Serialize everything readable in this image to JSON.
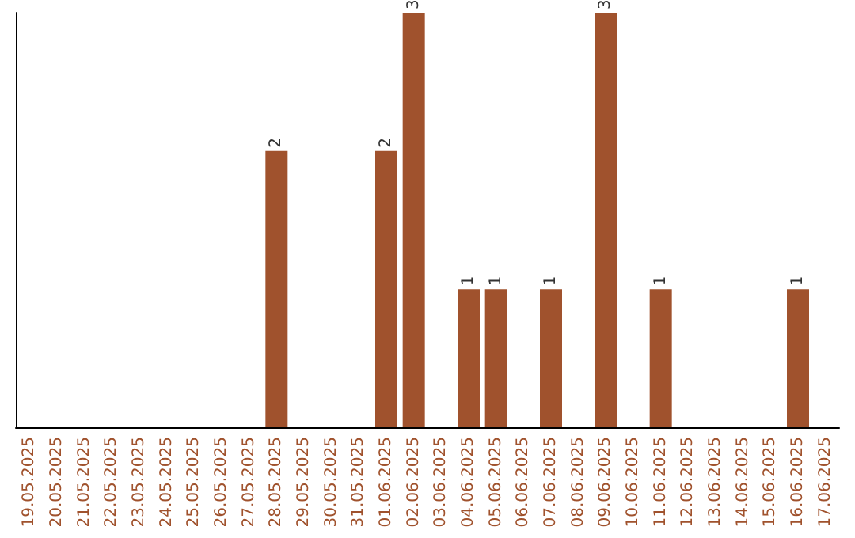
{
  "chart_data": {
    "type": "bar",
    "categories": [
      "19.05.2025",
      "20.05.2025",
      "21.05.2025",
      "22.05.2025",
      "23.05.2025",
      "24.05.2025",
      "25.05.2025",
      "26.05.2025",
      "27.05.2025",
      "28.05.2025",
      "29.05.2025",
      "30.05.2025",
      "31.05.2025",
      "01.06.2025",
      "02.06.2025",
      "03.06.2025",
      "04.06.2025",
      "05.06.2025",
      "06.06.2025",
      "07.06.2025",
      "08.06.2025",
      "09.06.2025",
      "10.06.2025",
      "11.06.2025",
      "12.06.2025",
      "13.06.2025",
      "14.06.2025",
      "15.06.2025",
      "16.06.2025",
      "17.06.2025"
    ],
    "values": [
      null,
      null,
      null,
      null,
      null,
      null,
      null,
      null,
      null,
      2,
      null,
      null,
      null,
      2,
      3,
      null,
      1,
      1,
      null,
      1,
      null,
      3,
      null,
      1,
      null,
      null,
      null,
      null,
      1,
      null
    ],
    "color": "#a0522d",
    "data_labels": true,
    "tick_labels": "x",
    "grid": false
  }
}
